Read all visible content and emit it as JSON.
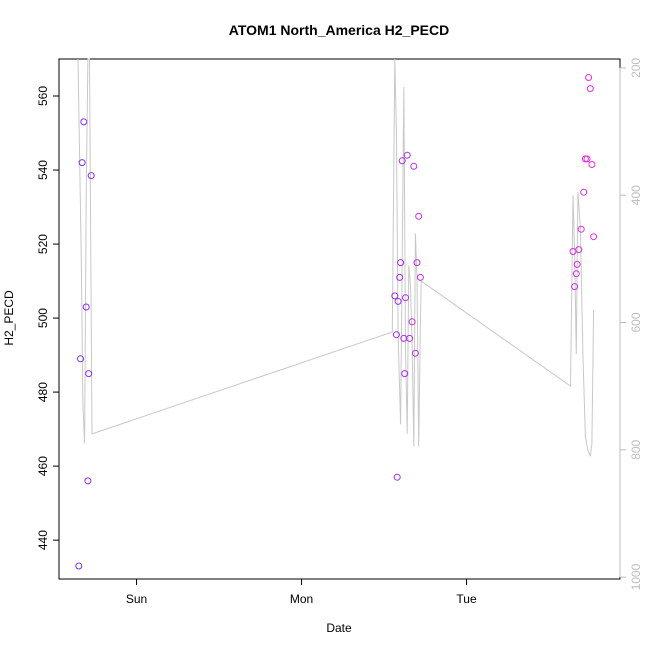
{
  "chart_data": {
    "type": "scatter",
    "title": "ATOM1 North_America H2_PECD",
    "xlabel": "Date",
    "ylabel": "H2_PECD",
    "x_ticks": [
      {
        "label": "Sun",
        "value": 1.0
      },
      {
        "label": "Mon",
        "value": 2.0
      },
      {
        "label": "Tue",
        "value": 3.0
      }
    ],
    "xlim": [
      0.53,
      3.93
    ],
    "ylim": [
      429.5,
      570.0
    ],
    "y_ticks": [
      440,
      460,
      480,
      500,
      520,
      540,
      560
    ],
    "y2_ticks": [
      200,
      400,
      600,
      800,
      1000
    ],
    "y2lim": [
      1003.0,
      186.0
    ],
    "point_color_start": "#7b2ff7",
    "point_color_end": "#f02fd8",
    "line_color": "#c8c8c8",
    "points": [
      {
        "x": 0.65,
        "y": 433
      },
      {
        "x": 0.66,
        "y": 489
      },
      {
        "x": 0.67,
        "y": 542
      },
      {
        "x": 0.68,
        "y": 553
      },
      {
        "x": 0.695,
        "y": 503
      },
      {
        "x": 0.705,
        "y": 456
      },
      {
        "x": 0.71,
        "y": 485
      },
      {
        "x": 0.725,
        "y": 538.5
      },
      {
        "x": 2.565,
        "y": 506
      },
      {
        "x": 2.575,
        "y": 495.5
      },
      {
        "x": 2.58,
        "y": 457
      },
      {
        "x": 2.585,
        "y": 504.5
      },
      {
        "x": 2.595,
        "y": 511
      },
      {
        "x": 2.6,
        "y": 515
      },
      {
        "x": 2.61,
        "y": 542.5
      },
      {
        "x": 2.62,
        "y": 494.5
      },
      {
        "x": 2.625,
        "y": 485
      },
      {
        "x": 2.63,
        "y": 505.5
      },
      {
        "x": 2.64,
        "y": 544
      },
      {
        "x": 2.655,
        "y": 494.5
      },
      {
        "x": 2.67,
        "y": 499
      },
      {
        "x": 2.68,
        "y": 541
      },
      {
        "x": 2.69,
        "y": 490.5
      },
      {
        "x": 2.7,
        "y": 515
      },
      {
        "x": 2.71,
        "y": 527.5
      },
      {
        "x": 2.72,
        "y": 511
      },
      {
        "x": 3.645,
        "y": 518
      },
      {
        "x": 3.655,
        "y": 508.5
      },
      {
        "x": 3.665,
        "y": 512
      },
      {
        "x": 3.67,
        "y": 514.5
      },
      {
        "x": 3.68,
        "y": 518.5
      },
      {
        "x": 3.695,
        "y": 524
      },
      {
        "x": 3.71,
        "y": 534
      },
      {
        "x": 3.72,
        "y": 543
      },
      {
        "x": 3.73,
        "y": 543
      },
      {
        "x": 3.74,
        "y": 565
      },
      {
        "x": 3.75,
        "y": 562
      },
      {
        "x": 3.76,
        "y": 541.5
      },
      {
        "x": 3.77,
        "y": 522
      }
    ],
    "pressure_line": [
      {
        "x": 0.645,
        "y2": 186
      },
      {
        "x": 0.665,
        "y2": 500
      },
      {
        "x": 0.675,
        "y2": 730
      },
      {
        "x": 0.685,
        "y2": 790
      },
      {
        "x": 0.695,
        "y2": 400
      },
      {
        "x": 0.705,
        "y2": 186
      },
      {
        "x": 0.715,
        "y2": 186
      },
      {
        "x": 0.73,
        "y2": 775
      },
      {
        "x": 2.55,
        "y2": 615
      },
      {
        "x": 2.565,
        "y2": 186
      },
      {
        "x": 2.575,
        "y2": 300
      },
      {
        "x": 2.585,
        "y2": 620
      },
      {
        "x": 2.6,
        "y2": 760
      },
      {
        "x": 2.61,
        "y2": 500
      },
      {
        "x": 2.62,
        "y2": 230
      },
      {
        "x": 2.63,
        "y2": 640
      },
      {
        "x": 2.64,
        "y2": 775
      },
      {
        "x": 2.65,
        "y2": 510
      },
      {
        "x": 2.66,
        "y2": 540
      },
      {
        "x": 2.67,
        "y2": 630
      },
      {
        "x": 2.68,
        "y2": 795
      },
      {
        "x": 2.69,
        "y2": 460
      },
      {
        "x": 2.7,
        "y2": 530
      },
      {
        "x": 2.71,
        "y2": 795
      },
      {
        "x": 2.72,
        "y2": 600
      },
      {
        "x": 2.725,
        "y2": 535
      },
      {
        "x": 3.63,
        "y2": 700
      },
      {
        "x": 3.645,
        "y2": 400
      },
      {
        "x": 3.655,
        "y2": 490
      },
      {
        "x": 3.665,
        "y2": 650
      },
      {
        "x": 3.675,
        "y2": 395
      },
      {
        "x": 3.69,
        "y2": 450
      },
      {
        "x": 3.705,
        "y2": 650
      },
      {
        "x": 3.72,
        "y2": 780
      },
      {
        "x": 3.735,
        "y2": 800
      },
      {
        "x": 3.75,
        "y2": 810
      },
      {
        "x": 3.76,
        "y2": 790
      },
      {
        "x": 3.77,
        "y2": 580
      }
    ]
  }
}
